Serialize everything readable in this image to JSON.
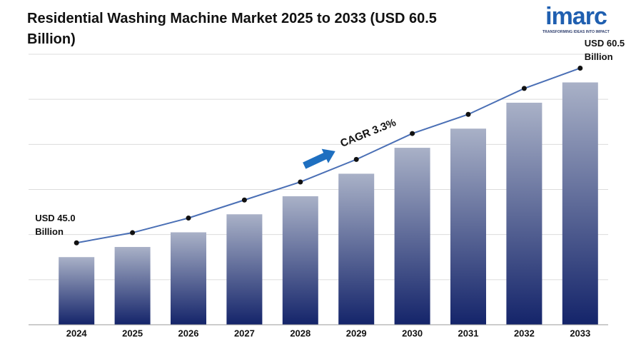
{
  "chart_data": {
    "type": "bar",
    "title": "Residential Washing Machine Market 2025 to 2033 (USD 60.5 Billion)",
    "categories": [
      "2024",
      "2025",
      "2026",
      "2027",
      "2028",
      "2029",
      "2030",
      "2031",
      "2032",
      "2033"
    ],
    "values": [
      45.0,
      45.9,
      47.2,
      48.8,
      50.4,
      52.4,
      54.7,
      56.4,
      58.7,
      60.5
    ],
    "value_labels": [
      "USD 45.0 Billion",
      null,
      null,
      null,
      null,
      null,
      null,
      null,
      null,
      "USD 60.5 Billion"
    ],
    "color_top": "#a9b1c7",
    "color_bottom": "#14246a",
    "line_color": "#4a6fb5",
    "annotation": "CAGR 3.3%",
    "ylim": [
      39,
      63
    ],
    "yticks": [
      39,
      43,
      47,
      51,
      55,
      59,
      63
    ],
    "show_ytick_labels": false,
    "grid": true
  },
  "logo": {
    "text": "imarc",
    "tagline": "TRANSFORMING IDEAS INTO IMPACT"
  }
}
